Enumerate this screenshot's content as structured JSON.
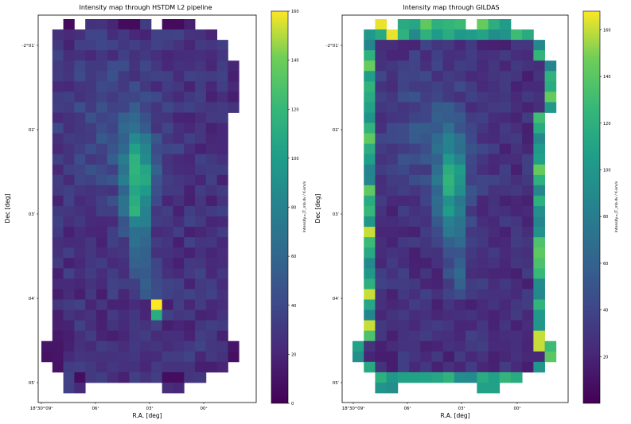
{
  "chart_data": [
    {
      "type": "heatmap",
      "title": "Intensity map through HSTDM L2 pipeline",
      "xlabel": "R.A. [deg]",
      "ylabel": "Dec [deg]",
      "x_tick_labels": [
        "18ʰ30ᵐ09ˢ",
        "06ˢ",
        "03ˢ",
        "00ˢ"
      ],
      "y_tick_labels": [
        "-2°01′",
        "02′",
        "03′",
        "04′",
        "05′"
      ],
      "colorbar": {
        "label": "Intensity=∫T_mb dv / K·km/s",
        "min": 0,
        "max": 160,
        "ticks": [
          "0",
          "20",
          "40",
          "60",
          "80",
          "100",
          "120",
          "140",
          "160"
        ]
      },
      "peak_value": 160,
      "structure": "Diffuse background of 10–40 K km/s with an elongated north-south ridge near R.A. 03s reaching ~120 K km/s, plus a compact hot spot of ~160 K km/s near Dec -2°04.2′."
    },
    {
      "type": "heatmap",
      "title": "Intensity map through GILDAS",
      "xlabel": "R.A. [deg]",
      "ylabel": "Dec [deg]",
      "x_tick_labels": [
        "18ʰ30ᵐ09ˢ",
        "06ˢ",
        "03ˢ",
        "00ˢ"
      ],
      "y_tick_labels": [
        "-2°01′",
        "02′",
        "03′",
        "04′",
        "05′"
      ],
      "colorbar": {
        "label": "Intensity=∫T_mb dv / K·km/s",
        "min": 0,
        "max": 168,
        "ticks": [
          "20",
          "40",
          "60",
          "80",
          "100",
          "120",
          "140",
          "160"
        ]
      },
      "peak_value": 165,
      "structure": "Same ridge morphology as the pipeline map (~120 K km/s) but with bright edge pixels (100–165 K km/s) along the map borders."
    }
  ]
}
